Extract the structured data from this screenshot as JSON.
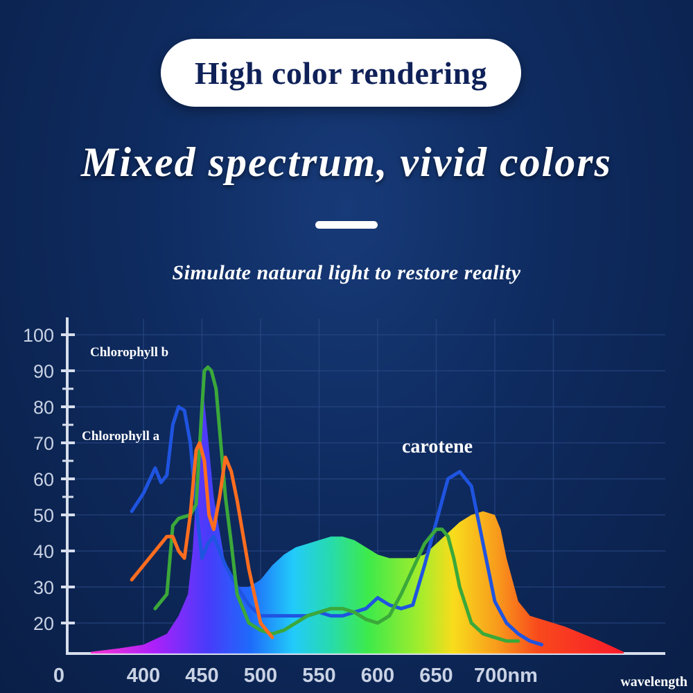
{
  "header": {
    "badge": "High color rendering",
    "headline": "Mixed spectrum, vivid colors",
    "subline": "Simulate natural light to restore reality"
  },
  "colors": {
    "background": "#0e2a5e",
    "chlorophyll_a": "#1f54e0",
    "chlorophyll_b": "#3ba83a",
    "carotene": "#ff6d1f"
  },
  "chart_data": {
    "type": "line",
    "y_ticks": [
      "100",
      "90",
      "80",
      "70",
      "60",
      "50",
      "40",
      "30",
      "20"
    ],
    "x_ticks": [
      "0",
      "400",
      "450",
      "500",
      "550",
      "600",
      "650",
      "700nm"
    ],
    "xlabel": "wavelength",
    "ylim": [
      12,
      100
    ],
    "grid": true,
    "spectrum": {
      "x": [
        355,
        380,
        400,
        420,
        430,
        438,
        442,
        446,
        450,
        455,
        460,
        470,
        480,
        490,
        500,
        510,
        520,
        530,
        540,
        550,
        560,
        570,
        580,
        590,
        600,
        610,
        620,
        630,
        640,
        650,
        660,
        670,
        680,
        690,
        700,
        705,
        710,
        720,
        730,
        740,
        760,
        790,
        810
      ],
      "y": [
        12,
        13,
        14,
        17,
        22,
        28,
        40,
        62,
        88,
        72,
        55,
        36,
        30,
        30,
        32,
        36,
        39,
        41,
        42,
        43,
        44,
        44,
        43,
        41,
        39,
        38,
        38,
        38,
        39,
        42,
        45,
        48,
        50,
        51,
        50,
        46,
        38,
        26,
        22,
        21,
        19,
        15,
        12
      ]
    },
    "annotations": [
      {
        "text": "Chlorophyll b",
        "series": "chlorophyll_b"
      },
      {
        "text": "Chlorophyll a",
        "series": "chlorophyll_a"
      },
      {
        "text": "carotene",
        "series": "carotene"
      }
    ],
    "series": [
      {
        "key": "chlorophyll_a",
        "x": [
          390,
          400,
          410,
          415,
          420,
          425,
          430,
          435,
          440,
          445,
          450,
          455,
          460,
          470,
          480,
          490,
          500,
          510,
          520,
          530,
          540,
          550,
          560,
          570,
          580,
          590,
          600,
          610,
          620,
          630,
          640,
          650,
          660,
          670,
          680,
          690,
          700,
          710,
          720,
          730,
          740
        ],
        "y": [
          51,
          56,
          63,
          59,
          61,
          75,
          80,
          79,
          70,
          52,
          38,
          42,
          44,
          36,
          30,
          25,
          22,
          22,
          22,
          22,
          22,
          23,
          22,
          22,
          23,
          24,
          27,
          25,
          24,
          25,
          36,
          48,
          60,
          62,
          58,
          42,
          26,
          20,
          17,
          15,
          14
        ]
      },
      {
        "key": "chlorophyll_b",
        "x": [
          410,
          420,
          425,
          430,
          440,
          445,
          450,
          452,
          455,
          458,
          462,
          466,
          470,
          475,
          480,
          490,
          500,
          510,
          520,
          530,
          540,
          550,
          560,
          570,
          580,
          590,
          600,
          610,
          620,
          630,
          640,
          650,
          655,
          660,
          665,
          670,
          680,
          690,
          700,
          710,
          720
        ],
        "y": [
          24,
          28,
          47,
          49,
          50,
          53,
          80,
          90,
          91,
          90,
          85,
          70,
          55,
          42,
          28,
          20,
          18,
          17,
          18,
          20,
          22,
          23,
          24,
          24,
          23,
          21,
          20,
          22,
          28,
          35,
          42,
          46,
          46,
          44,
          38,
          30,
          20,
          17,
          16,
          15,
          15
        ]
      },
      {
        "key": "carotene",
        "x": [
          390,
          400,
          410,
          420,
          425,
          430,
          435,
          440,
          445,
          448,
          452,
          456,
          460,
          465,
          470,
          475,
          480,
          490,
          500,
          510
        ],
        "y": [
          32,
          36,
          40,
          44,
          44,
          40,
          38,
          50,
          68,
          70,
          65,
          50,
          46,
          55,
          66,
          62,
          54,
          35,
          20,
          16
        ]
      }
    ]
  }
}
